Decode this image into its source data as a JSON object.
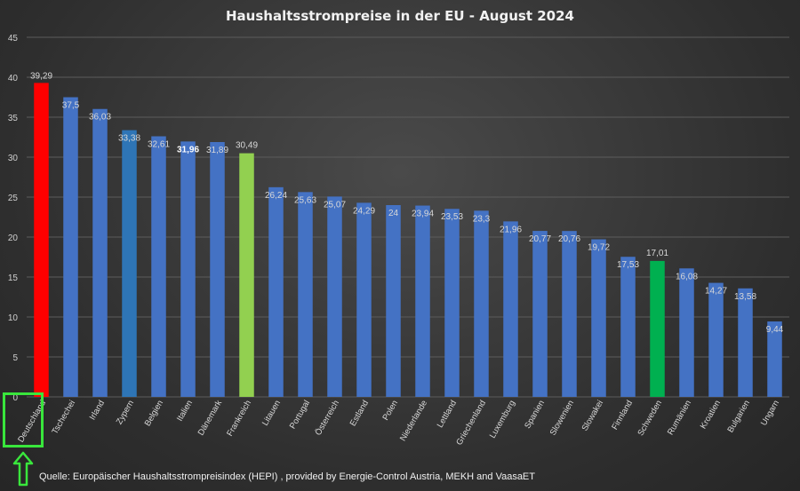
{
  "chart_data": {
    "type": "bar",
    "title": "Haushaltsstrompreise in der EU - August 2024",
    "categories": [
      "Deutschland",
      "Tschechei",
      "Irland",
      "Zypern",
      "Belgien",
      "Italien",
      "Dänemark",
      "Frankreich",
      "Litauen",
      "Portugal",
      "Österreich",
      "Estland",
      "Polen",
      "Niederlande",
      "Lettland",
      "Griechenland",
      "Luxemburg",
      "Spanien",
      "Slowenien",
      "Slowakei",
      "Finnland",
      "Schweden",
      "Rumänien",
      "Kroatien",
      "Bulgarien",
      "Ungarn"
    ],
    "values": [
      39.29,
      37.5,
      36.03,
      33.38,
      32.61,
      31.96,
      31.89,
      30.49,
      26.24,
      25.63,
      25.07,
      24.29,
      24,
      23.94,
      23.53,
      23.3,
      21.96,
      20.77,
      20.76,
      19.72,
      17.53,
      17.01,
      16.08,
      14.27,
      13.58,
      9.44
    ],
    "value_labels": [
      "39,29",
      "37,5",
      "36,03",
      "33,38",
      "32,61",
      "31,96",
      "31,89",
      "30,49",
      "26,24",
      "25,63",
      "25,07",
      "24,29",
      "24",
      "23,94",
      "23,53",
      "23,3",
      "21,96",
      "20,77",
      "20,76",
      "19,72",
      "17,53",
      "17,01",
      "16,08",
      "14,27",
      "13,58",
      "9,44"
    ],
    "bold_labels": [
      5
    ],
    "ylim": [
      0,
      45
    ],
    "yticks": [
      0,
      5,
      10,
      15,
      20,
      25,
      30,
      35,
      40,
      45
    ],
    "grid": true,
    "colors": {
      "default": "#4472c4",
      "Deutschland": "#ff0000",
      "Zypern": "#2e75b6",
      "Frankreich": "#92d050",
      "Schweden": "#00b050"
    }
  },
  "source": "Quelle:  Europäischer Haushaltsstrompreisindex (HEPI) , provided by  Energie-Control Austria, MEKH and VaasaET",
  "highlight": {
    "category": "Deutschland",
    "color": "#39e63c",
    "icon": "up-arrow-icon"
  }
}
